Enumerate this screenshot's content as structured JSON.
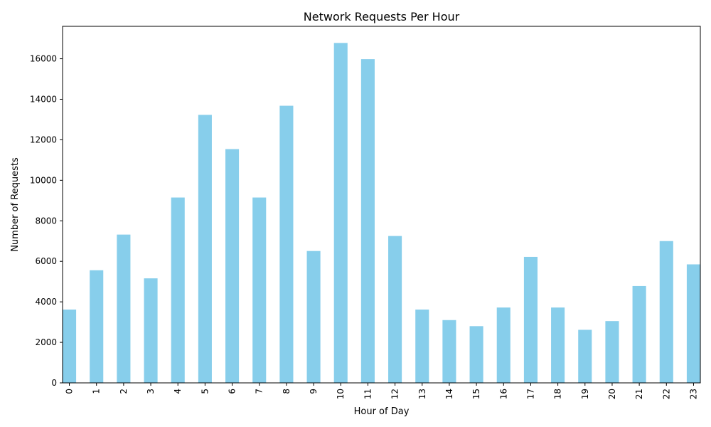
{
  "chart_data": {
    "type": "bar",
    "title": "Network Requests Per Hour",
    "xlabel": "Hour of Day",
    "ylabel": "Number of Requests",
    "categories": [
      "0",
      "1",
      "2",
      "3",
      "4",
      "5",
      "6",
      "7",
      "8",
      "9",
      "10",
      "11",
      "12",
      "13",
      "14",
      "15",
      "16",
      "17",
      "18",
      "19",
      "20",
      "21",
      "22",
      "23"
    ],
    "values": [
      3620,
      5560,
      7320,
      5160,
      9150,
      13230,
      11540,
      9150,
      13680,
      6510,
      16780,
      15980,
      7250,
      3620,
      3100,
      2800,
      3720,
      6220,
      3720,
      2620,
      3050,
      4780,
      7000,
      5850
    ],
    "ylim": [
      0,
      17600
    ],
    "yticks": [
      0,
      2000,
      4000,
      6000,
      8000,
      10000,
      12000,
      14000,
      16000
    ],
    "bar_color": "#87CEEB",
    "grid": false,
    "legend": false
  }
}
